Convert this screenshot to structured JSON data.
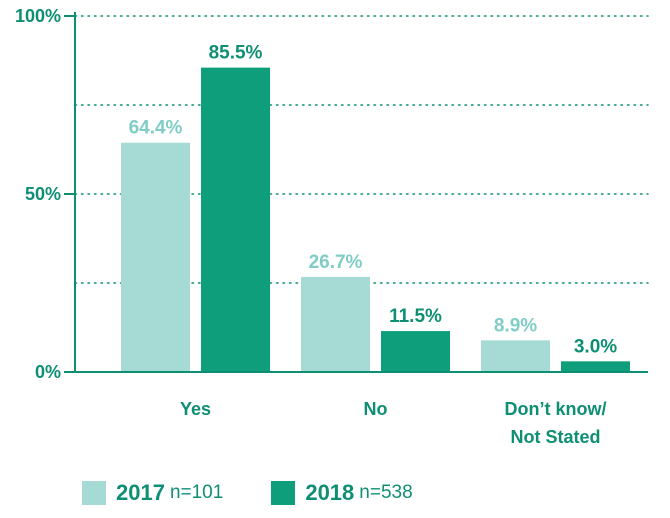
{
  "chart_data": {
    "type": "bar",
    "categories": [
      [
        "Yes"
      ],
      [
        "No"
      ],
      [
        "Don’t know/",
        "Not Stated"
      ]
    ],
    "series": [
      {
        "name": "2017",
        "note": "n=101",
        "color": "#a5dad5",
        "label_color": "#7fcdc6",
        "values": [
          64.4,
          26.7,
          8.9
        ],
        "labels": [
          "64.4%",
          "26.7%",
          "8.9%"
        ]
      },
      {
        "name": "2018",
        "note": "n=538",
        "color": "#0e9e7c",
        "label_color": "#0e8f74",
        "values": [
          85.5,
          11.5,
          3.0
        ],
        "labels": [
          "85.5%",
          "11.5%",
          "3.0%"
        ]
      }
    ],
    "ylim": [
      0,
      100
    ],
    "yticks": [
      {
        "value": 0,
        "label": "0%"
      },
      {
        "value": 50,
        "label": "50%"
      },
      {
        "value": 100,
        "label": "100%"
      }
    ],
    "gridlines": [
      25,
      50,
      75,
      100
    ],
    "grid": "dotted",
    "axis_color": "#0e8f74",
    "legend_position": "bottom-left"
  }
}
